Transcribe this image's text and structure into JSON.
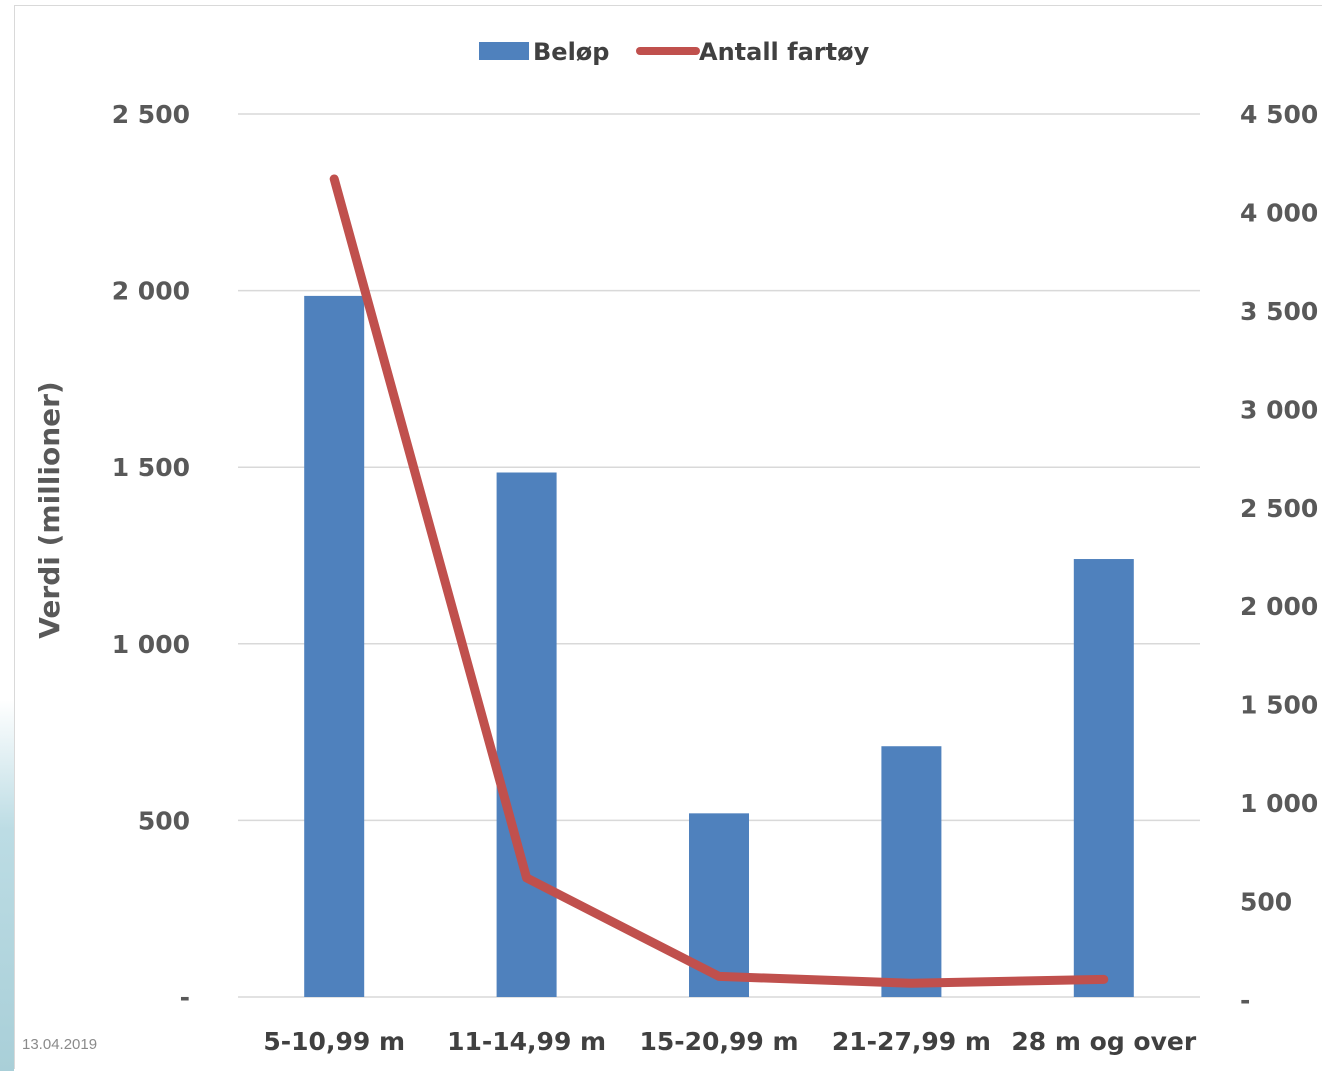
{
  "footer": {
    "date": "13.04.2019"
  },
  "colors": {
    "bar": "#4f81bd",
    "line": "#c0504d",
    "grid": "#d9d9d9"
  },
  "chart_data": {
    "type": "bar",
    "categories": [
      "5-10,99 m",
      "11-14,99 m",
      "15-20,99 m",
      "21-27,99 m",
      "28 m og over"
    ],
    "ylabel": "Verdi (millioner)",
    "ylim": [
      0,
      2500
    ],
    "y_ticks": [
      "-",
      "500",
      "1 000",
      "1 500",
      "2 000",
      "2 500"
    ],
    "y2lim": [
      0,
      4500
    ],
    "y2_ticks": [
      "-",
      "500",
      "1 000",
      "1 500",
      "2 000",
      "2 500",
      "3 000",
      "3 500",
      "4 000",
      "4 500"
    ],
    "grid": true,
    "legend_position": "top-center",
    "series": [
      {
        "name": "Beløp",
        "type": "bar",
        "axis": "left",
        "values": [
          1985,
          1485,
          520,
          710,
          1240
        ]
      },
      {
        "name": "Antall fartøy",
        "type": "line",
        "axis": "right",
        "values": [
          4170,
          620,
          120,
          85,
          105
        ]
      }
    ]
  }
}
